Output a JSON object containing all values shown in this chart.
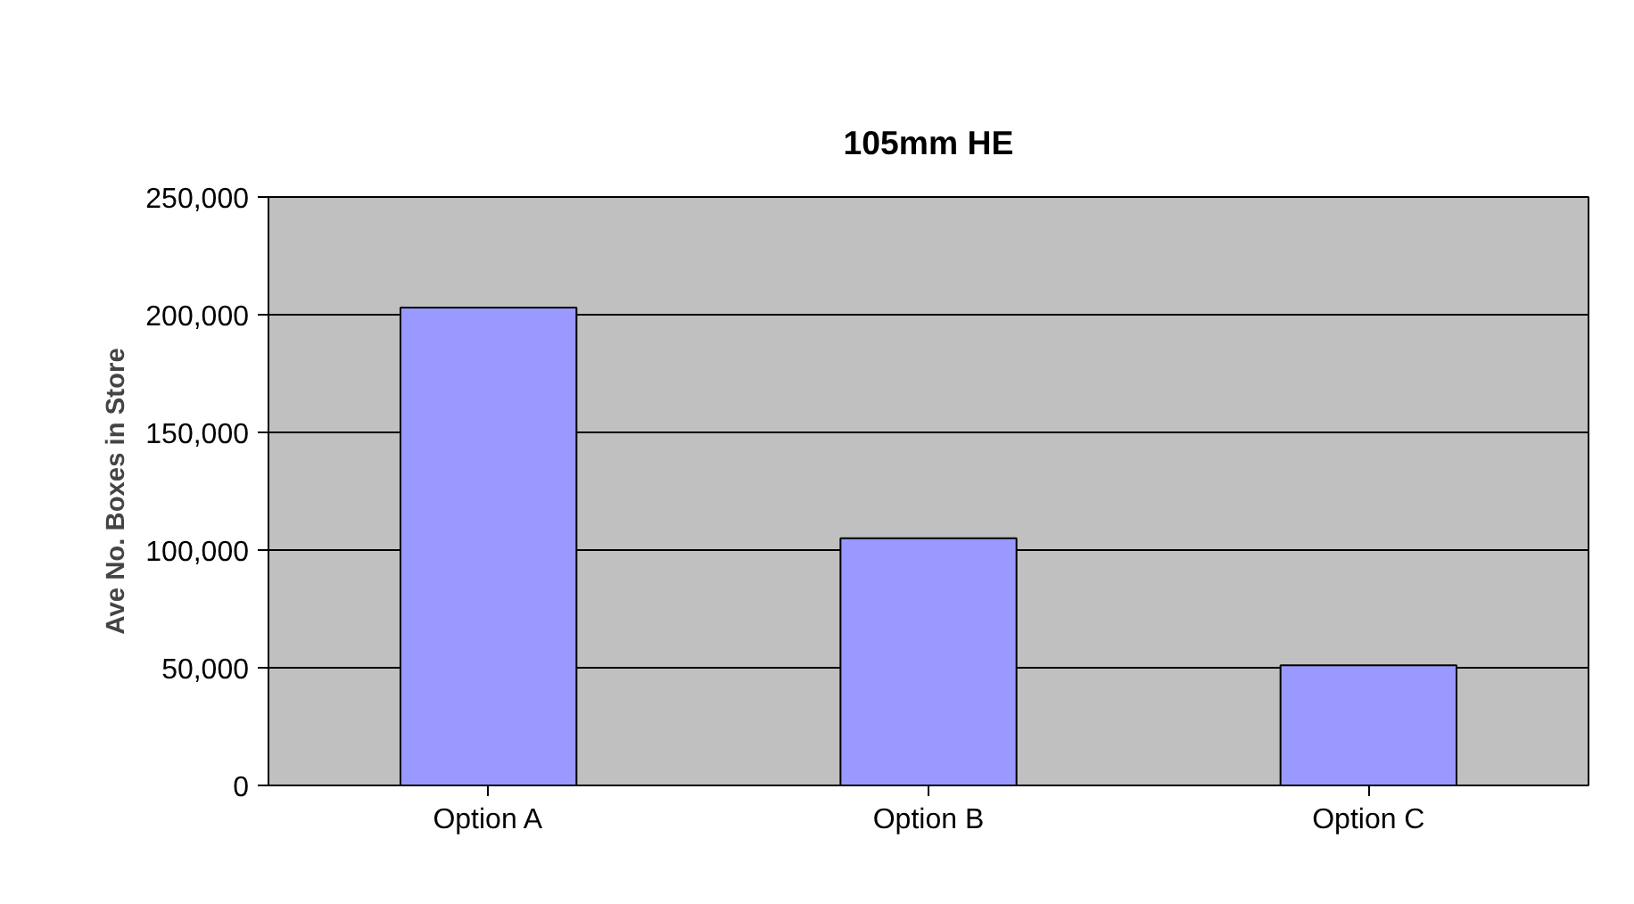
{
  "chart_data": {
    "type": "bar",
    "title": "105mm HE",
    "ylabel": "Ave No. Boxes in Store",
    "categories": [
      "Option A",
      "Option B",
      "Option C"
    ],
    "values": [
      203000,
      105000,
      51000
    ],
    "color": "#9999ff",
    "ylim": [
      0,
      250000
    ],
    "yticks": [
      {
        "value": 0,
        "label": "0"
      },
      {
        "value": 50000,
        "label": "50,000"
      },
      {
        "value": 100000,
        "label": "100,000"
      },
      {
        "value": 150000,
        "label": "150,000"
      },
      {
        "value": 200000,
        "label": "200,000"
      },
      {
        "value": 250000,
        "label": "250,000"
      }
    ],
    "grid": "y"
  }
}
